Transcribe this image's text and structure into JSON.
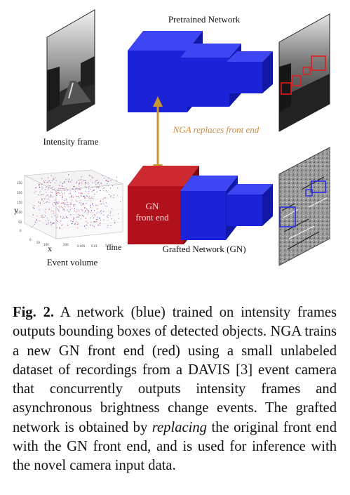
{
  "figure": {
    "labels": {
      "pretrained": "Pretrained Network",
      "intensity_frame": "Intensity frame",
      "nga_replaces": "NGA replaces front end",
      "gn_line1": "GN",
      "gn_line2": "front end",
      "grafted": "Grafted Network (GN)",
      "event_volume": "Event volume",
      "axis_x": "x",
      "axis_y": "y",
      "axis_time": "time"
    },
    "colors": {
      "blue_front": "#1c22d8",
      "blue_top": "#3e45f2",
      "blue_side": "#1118a8",
      "red_front": "#b0111b",
      "red_top": "#cc2a30",
      "red_side": "#7c0a10",
      "arrow": "#c8952e",
      "nga_text": "#d08a3a"
    }
  },
  "caption": {
    "fig_label": "Fig. 2.",
    "text_before_italic": " A network (blue) trained on intensity frames outputs bounding boxes of detected objects. NGA trains a new GN front end (red) using a small unlabeled dataset of recordings from a DAVIS [3] event camera that concurrently outputs intensity frames and asynchronous brightness change events. The grafted network is obtained by ",
    "italic_word": "replacing",
    "text_after_italic": " the original front end with the GN front end, and is used for inference with the novel camera input data."
  }
}
